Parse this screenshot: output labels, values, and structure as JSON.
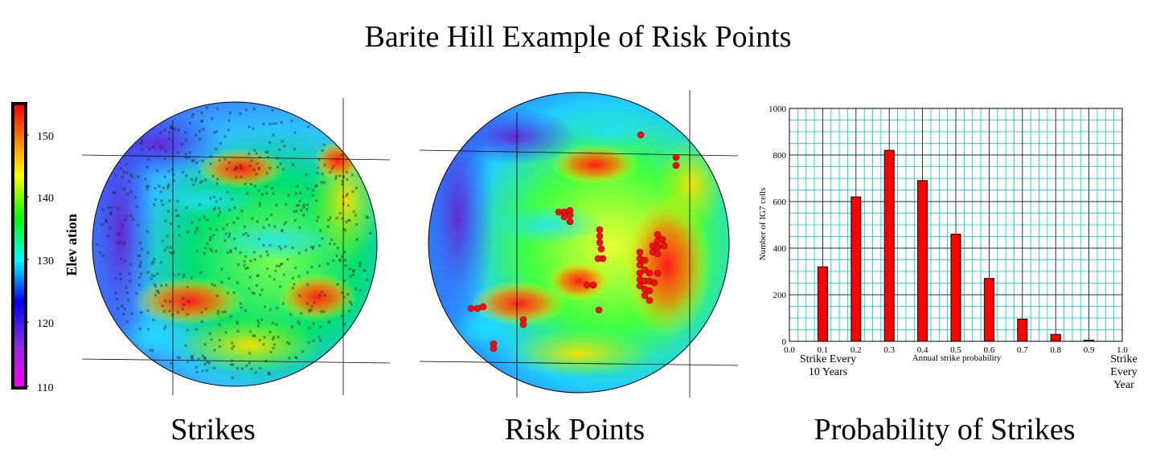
{
  "title": "Barite Hill Example of Risk Points",
  "captions": {
    "strikes": "Strikes",
    "risk_points": "Risk Points",
    "probability": "Probability of Strikes"
  },
  "colorbar": {
    "label": "Elev ation",
    "ticks": [
      "150",
      "140",
      "130",
      "120",
      "110"
    ]
  },
  "chart_data": {
    "type": "bar",
    "x": [
      0.1,
      0.2,
      0.3,
      0.4,
      0.5,
      0.6,
      0.7,
      0.8,
      0.9
    ],
    "values": [
      320,
      620,
      820,
      690,
      460,
      270,
      95,
      30,
      5
    ],
    "xlabel": "Annual strike probability",
    "ylabel": "Number of IG7 cells",
    "xlim": [
      0.0,
      1.0
    ],
    "ylim": [
      0,
      1000
    ],
    "xticks": [
      "0.0",
      "0.1",
      "0.2",
      "0.3",
      "0.4",
      "0.5",
      "0.6",
      "0.7",
      "0.8",
      "0.9",
      "1.0"
    ],
    "yticks": [
      "0",
      "200",
      "400",
      "600",
      "800",
      "1000"
    ],
    "grid": true,
    "bar_color": "#ff0000",
    "grid_color": "#00c8c8",
    "annotations": {
      "left": [
        "Strike Every",
        "10 Years"
      ],
      "right": [
        "Strike",
        "Every",
        "Year"
      ]
    }
  }
}
